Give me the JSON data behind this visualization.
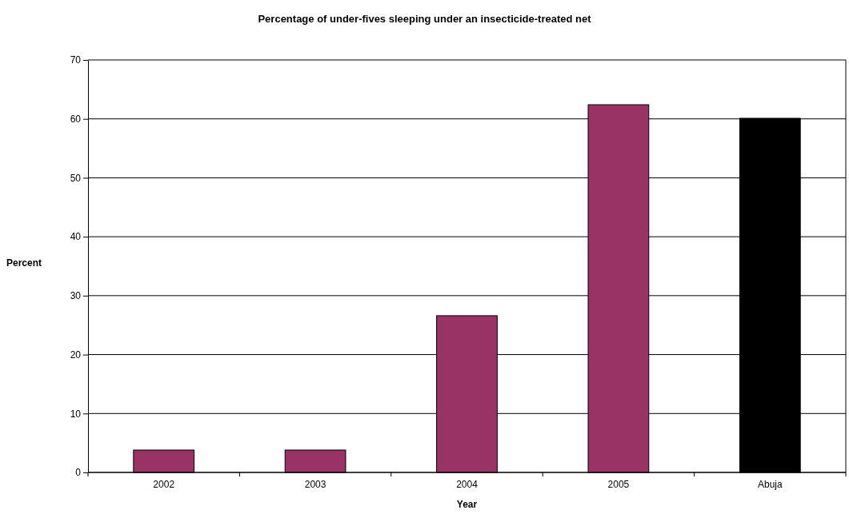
{
  "chart_data": {
    "type": "bar",
    "title": "Percentage of under-fives sleeping under an insecticide-treated net",
    "xlabel": "Year",
    "ylabel": "Percent",
    "categories": [
      "2002",
      "2003",
      "2004",
      "2005",
      "Abuja"
    ],
    "values": [
      3.8,
      3.8,
      26.6,
      62.4,
      60.1
    ],
    "colors": [
      "#993366",
      "#993366",
      "#993366",
      "#993366",
      "#000000"
    ],
    "ylim": [
      0,
      70
    ],
    "yticks": [
      0,
      10,
      20,
      30,
      40,
      50,
      60,
      70
    ],
    "grid": "y"
  }
}
